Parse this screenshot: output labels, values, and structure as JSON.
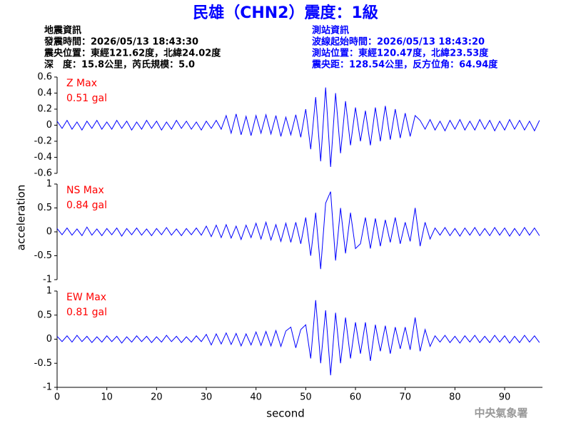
{
  "title": "民雄（CHN2）震度：1級",
  "info_left": [
    "地震資訊",
    "發震時間：2026/05/13 18:43:30",
    "震央位置：東經121.62度，北緯24.02度",
    "深　度：15.8公里，芮氏規模：5.0"
  ],
  "info_right": [
    "測站資訊",
    "波線起始時間：2026/05/13 18:43:20",
    "測站位置：東經120.47度，北緯23.53度",
    "震央距：128.54公里，反方位角：64.94度"
  ],
  "y_label": "acceleration",
  "x_label": "second",
  "watermark": "中央氣象署",
  "chart_data": [
    {
      "type": "line",
      "annotation": [
        "Z Max",
        "0.51 gal"
      ],
      "annotation_color": "#ff0000",
      "xlim": [
        0,
        97.6
      ],
      "ylim": [
        -0.6,
        0.6
      ],
      "yticks": [
        0.6,
        0.4,
        0.2,
        0,
        -0.2,
        -0.4,
        -0.6
      ],
      "x": [
        0,
        1,
        2,
        3,
        4,
        5,
        6,
        7,
        8,
        9,
        10,
        11,
        12,
        13,
        14,
        15,
        16,
        17,
        18,
        19,
        20,
        21,
        22,
        23,
        24,
        25,
        26,
        27,
        28,
        29,
        30,
        31,
        32,
        33,
        34,
        35,
        36,
        37,
        38,
        39,
        40,
        41,
        42,
        43,
        44,
        45,
        46,
        47,
        48,
        49,
        50,
        51,
        52,
        53,
        54,
        55,
        56,
        57,
        58,
        59,
        60,
        61,
        62,
        63,
        64,
        65,
        66,
        67,
        68,
        69,
        70,
        71,
        72,
        73,
        74,
        75,
        76,
        77,
        78,
        79,
        80,
        81,
        82,
        83,
        84,
        85,
        86,
        87,
        88,
        89,
        90,
        91,
        92,
        93,
        94,
        95,
        96,
        97
      ],
      "series": [
        {
          "color": "#0000ff",
          "values": [
            0.05,
            -0.04,
            0.06,
            -0.05,
            0.04,
            -0.06,
            0.05,
            -0.04,
            0.06,
            -0.05,
            0.04,
            -0.05,
            0.06,
            -0.04,
            0.05,
            -0.06,
            0.04,
            -0.05,
            0.06,
            -0.04,
            0.05,
            -0.06,
            0.04,
            -0.05,
            0.06,
            -0.04,
            0.05,
            -0.05,
            0.04,
            -0.06,
            0.05,
            -0.04,
            0.06,
            -0.05,
            0.12,
            -0.1,
            0.14,
            -0.12,
            0.11,
            -0.13,
            0.12,
            -0.1,
            0.13,
            -0.11,
            0.12,
            -0.14,
            0.1,
            -0.12,
            0.13,
            -0.15,
            0.2,
            -0.3,
            0.35,
            -0.45,
            0.47,
            -0.52,
            0.4,
            -0.35,
            0.3,
            -0.25,
            0.22,
            -0.2,
            0.18,
            -0.25,
            0.22,
            -0.2,
            0.24,
            -0.18,
            0.2,
            -0.16,
            0.15,
            -0.14,
            0.12,
            0.06,
            -0.05,
            0.07,
            -0.06,
            0.05,
            -0.07,
            0.06,
            -0.05,
            0.07,
            -0.06,
            0.05,
            -0.06,
            0.07,
            -0.05,
            0.06,
            -0.07,
            0.05,
            -0.06,
            0.07,
            -0.05,
            0.06,
            -0.06,
            0.05,
            -0.07,
            0.06
          ]
        }
      ]
    },
    {
      "type": "line",
      "annotation": [
        "NS Max",
        "0.84 gal"
      ],
      "annotation_color": "#ff0000",
      "xlim": [
        0,
        97.6
      ],
      "ylim": [
        -1,
        1
      ],
      "yticks": [
        1,
        0.5,
        0,
        -0.5,
        -1
      ],
      "x": [
        0,
        1,
        2,
        3,
        4,
        5,
        6,
        7,
        8,
        9,
        10,
        11,
        12,
        13,
        14,
        15,
        16,
        17,
        18,
        19,
        20,
        21,
        22,
        23,
        24,
        25,
        26,
        27,
        28,
        29,
        30,
        31,
        32,
        33,
        34,
        35,
        36,
        37,
        38,
        39,
        40,
        41,
        42,
        43,
        44,
        45,
        46,
        47,
        48,
        49,
        50,
        51,
        52,
        53,
        54,
        55,
        56,
        57,
        58,
        59,
        60,
        61,
        62,
        63,
        64,
        65,
        66,
        67,
        68,
        69,
        70,
        71,
        72,
        73,
        74,
        75,
        76,
        77,
        78,
        79,
        80,
        81,
        82,
        83,
        84,
        85,
        86,
        87,
        88,
        89,
        90,
        91,
        92,
        93,
        94,
        95,
        96,
        97
      ],
      "series": [
        {
          "color": "#0000ff",
          "values": [
            0.07,
            -0.06,
            0.08,
            -0.07,
            0.06,
            -0.08,
            0.1,
            -0.07,
            0.06,
            -0.08,
            0.07,
            -0.06,
            0.08,
            -0.09,
            0.07,
            -0.06,
            0.08,
            -0.07,
            0.06,
            -0.08,
            0.07,
            -0.06,
            0.09,
            -0.07,
            0.06,
            -0.08,
            0.07,
            -0.06,
            0.08,
            -0.07,
            0.12,
            -0.1,
            0.14,
            -0.12,
            0.15,
            -0.13,
            0.12,
            -0.16,
            0.14,
            -0.12,
            0.18,
            -0.15,
            0.2,
            -0.17,
            0.15,
            -0.2,
            0.18,
            -0.22,
            0.2,
            -0.25,
            0.3,
            -0.5,
            0.4,
            -0.78,
            0.6,
            0.84,
            -0.6,
            0.5,
            -0.45,
            0.4,
            -0.35,
            -0.25,
            0.3,
            -0.35,
            0.28,
            -0.3,
            0.25,
            -0.22,
            0.3,
            -0.25,
            0.2,
            -0.2,
            0.5,
            -0.3,
            0.2,
            -0.15,
            0.08,
            -0.07,
            0.09,
            -0.08,
            0.07,
            -0.09,
            0.08,
            -0.07,
            0.09,
            -0.08,
            0.07,
            -0.08,
            0.09,
            -0.07,
            0.08,
            -0.09,
            0.07,
            -0.08,
            0.09,
            -0.07,
            0.08,
            -0.08
          ]
        }
      ]
    },
    {
      "type": "line",
      "annotation": [
        "EW Max",
        "0.81 gal"
      ],
      "annotation_color": "#ff0000",
      "xlim": [
        0,
        97.6
      ],
      "ylim": [
        -1,
        1
      ],
      "yticks": [
        1,
        0.5,
        0,
        -0.5,
        -1
      ],
      "xticks": [
        0,
        10,
        20,
        30,
        40,
        50,
        60,
        70,
        80,
        90
      ],
      "x": [
        0,
        1,
        2,
        3,
        4,
        5,
        6,
        7,
        8,
        9,
        10,
        11,
        12,
        13,
        14,
        15,
        16,
        17,
        18,
        19,
        20,
        21,
        22,
        23,
        24,
        25,
        26,
        27,
        28,
        29,
        30,
        31,
        32,
        33,
        34,
        35,
        36,
        37,
        38,
        39,
        40,
        41,
        42,
        43,
        44,
        45,
        46,
        47,
        48,
        49,
        50,
        51,
        52,
        53,
        54,
        55,
        56,
        57,
        58,
        59,
        60,
        61,
        62,
        63,
        64,
        65,
        66,
        67,
        68,
        69,
        70,
        71,
        72,
        73,
        74,
        75,
        76,
        77,
        78,
        79,
        80,
        81,
        82,
        83,
        84,
        85,
        86,
        87,
        88,
        89,
        90,
        91,
        92,
        93,
        94,
        95,
        96,
        97
      ],
      "series": [
        {
          "color": "#0000ff",
          "values": [
            0.06,
            -0.05,
            0.07,
            -0.06,
            0.08,
            -0.05,
            0.06,
            -0.07,
            0.05,
            -0.06,
            0.07,
            -0.05,
            0.06,
            -0.08,
            0.05,
            -0.06,
            0.07,
            -0.05,
            0.06,
            -0.07,
            0.05,
            -0.06,
            0.08,
            -0.05,
            0.06,
            -0.07,
            0.05,
            -0.06,
            0.07,
            -0.05,
            0.1,
            -0.12,
            0.11,
            -0.1,
            0.13,
            -0.11,
            0.12,
            -0.14,
            0.11,
            -0.12,
            0.15,
            -0.13,
            0.16,
            -0.14,
            0.18,
            -0.15,
            0.17,
            0.25,
            -0.18,
            0.2,
            0.3,
            -0.4,
            0.81,
            -0.5,
            0.6,
            -0.75,
            0.55,
            -0.5,
            0.45,
            -0.4,
            0.35,
            -0.3,
            0.35,
            -0.45,
            0.3,
            -0.25,
            0.28,
            -0.3,
            0.25,
            -0.2,
            0.25,
            -0.22,
            0.45,
            -0.25,
            0.2,
            -0.15,
            0.07,
            -0.06,
            0.08,
            -0.07,
            0.06,
            -0.08,
            0.07,
            -0.06,
            0.08,
            -0.07,
            0.06,
            -0.07,
            0.08,
            -0.06,
            0.07,
            -0.08,
            0.06,
            -0.07,
            0.08,
            -0.06,
            0.07,
            -0.07
          ]
        }
      ]
    }
  ]
}
